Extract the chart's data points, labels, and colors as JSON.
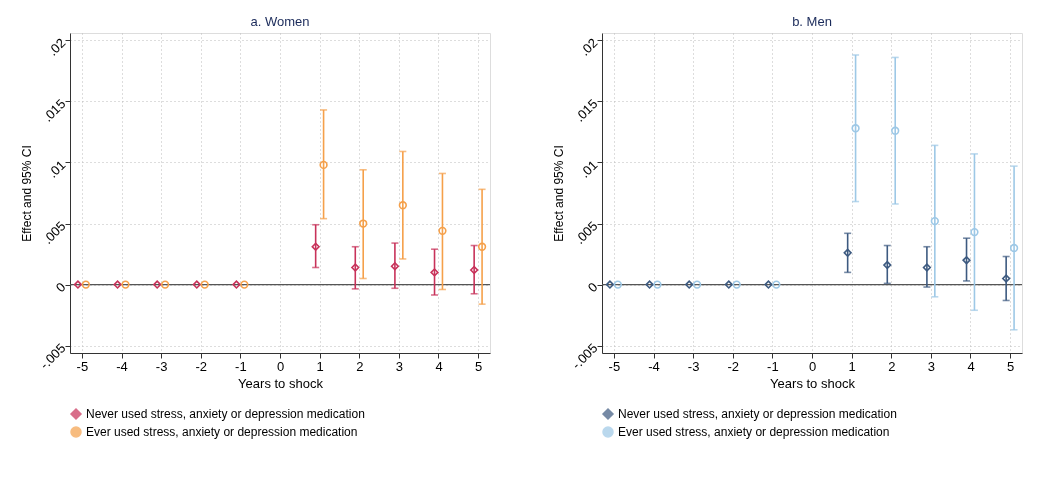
{
  "chart_data": [
    {
      "type": "scatter",
      "title": "a. Women",
      "xlabel": "Years to shock",
      "ylabel": "Effect and 95% CI",
      "xlim": [
        -5.3,
        5.3
      ],
      "xticks": [
        -5,
        -4,
        -3,
        -2,
        -1,
        0,
        1,
        2,
        3,
        4,
        5
      ],
      "ylim": [
        -0.0056,
        0.0206
      ],
      "yticks": [
        {
          "value": -0.005,
          "label": "-.005"
        },
        {
          "value": 0,
          "label": "0"
        },
        {
          "value": 0.005,
          "label": ".005"
        },
        {
          "value": 0.01,
          "label": ".01"
        },
        {
          "value": 0.015,
          "label": ".015"
        },
        {
          "value": 0.02,
          "label": ".02"
        }
      ],
      "grid": true,
      "legend": "bottom",
      "ref_lines": [
        {
          "axis": "y",
          "value": 0,
          "color": "#555555"
        }
      ],
      "series": [
        {
          "name": "Never used stress, anxiety or depression medication",
          "color": "#c8325a",
          "marker": "diamond",
          "x": [
            -5.1,
            -4.1,
            -3.1,
            -2.1,
            -1.1,
            0.9,
            1.9,
            2.9,
            3.9,
            4.9
          ],
          "values": [
            0,
            0,
            0,
            0,
            0,
            0.0031,
            0.0014,
            0.0015,
            0.001,
            0.0012
          ],
          "errors": [
            null,
            null,
            null,
            null,
            null,
            [
              0.0014,
              0.0049
            ],
            [
              -0.00035,
              0.0031
            ],
            [
              -0.0003,
              0.0034
            ],
            [
              -0.00085,
              0.0029
            ],
            [
              -0.00075,
              0.0032
            ]
          ]
        },
        {
          "name": "Ever used stress, anxiety or depression medication",
          "color": "#f5a04a",
          "marker": "circle",
          "x": [
            -4.9,
            -3.9,
            -2.9,
            -1.9,
            -0.9,
            1.1,
            2.1,
            3.1,
            4.1,
            5.1
          ],
          "values": [
            0,
            0,
            0,
            0,
            0,
            0.0098,
            0.005,
            0.0065,
            0.0044,
            0.0031
          ],
          "errors": [
            null,
            null,
            null,
            null,
            null,
            [
              0.0054,
              0.0143
            ],
            [
              0.0005,
              0.0094
            ],
            [
              0.0021,
              0.0109
            ],
            [
              -0.0004,
              0.0091
            ],
            [
              -0.0016,
              0.0078
            ]
          ]
        }
      ]
    },
    {
      "type": "scatter",
      "title": "b. Men",
      "xlabel": "Years to shock",
      "ylabel": "Effect and 95% CI",
      "xlim": [
        -5.3,
        5.3
      ],
      "xticks": [
        -5,
        -4,
        -3,
        -2,
        -1,
        0,
        1,
        2,
        3,
        4,
        5
      ],
      "ylim": [
        -0.0056,
        0.0206
      ],
      "yticks": [
        {
          "value": -0.005,
          "label": "-.005"
        },
        {
          "value": 0,
          "label": "0"
        },
        {
          "value": 0.005,
          "label": ".005"
        },
        {
          "value": 0.01,
          "label": ".01"
        },
        {
          "value": 0.015,
          "label": ".015"
        },
        {
          "value": 0.02,
          "label": ".02"
        }
      ],
      "grid": true,
      "legend": "bottom",
      "ref_lines": [
        {
          "axis": "y",
          "value": 0,
          "color": "#555555"
        }
      ],
      "series": [
        {
          "name": "Never used stress, anxiety or depression medication",
          "color": "#3d5a80",
          "marker": "diamond",
          "x": [
            -5.1,
            -4.1,
            -3.1,
            -2.1,
            -1.1,
            0.9,
            1.9,
            2.9,
            3.9,
            4.9
          ],
          "values": [
            0,
            0,
            0,
            0,
            0,
            0.0026,
            0.0016,
            0.0014,
            0.002,
            0.0005
          ],
          "errors": [
            null,
            null,
            null,
            null,
            null,
            [
              0.001,
              0.0042
            ],
            [
              0.0001,
              0.0032
            ],
            [
              -0.0002,
              0.0031
            ],
            [
              0.0003,
              0.0038
            ],
            [
              -0.0013,
              0.0023
            ]
          ]
        },
        {
          "name": "Ever used stress, anxiety or depression medication",
          "color": "#9dc8e6",
          "marker": "circle",
          "x": [
            -4.9,
            -3.9,
            -2.9,
            -1.9,
            -0.9,
            1.1,
            2.1,
            3.1,
            4.1,
            5.1
          ],
          "values": [
            0,
            0,
            0,
            0,
            0,
            0.0128,
            0.0126,
            0.0052,
            0.0043,
            0.003
          ],
          "errors": [
            null,
            null,
            null,
            null,
            null,
            [
              0.0068,
              0.0188
            ],
            [
              0.0066,
              0.0186
            ],
            [
              -0.001,
              0.0114
            ],
            [
              -0.0021,
              0.0107
            ],
            [
              -0.0037,
              0.0097
            ]
          ]
        }
      ]
    }
  ]
}
